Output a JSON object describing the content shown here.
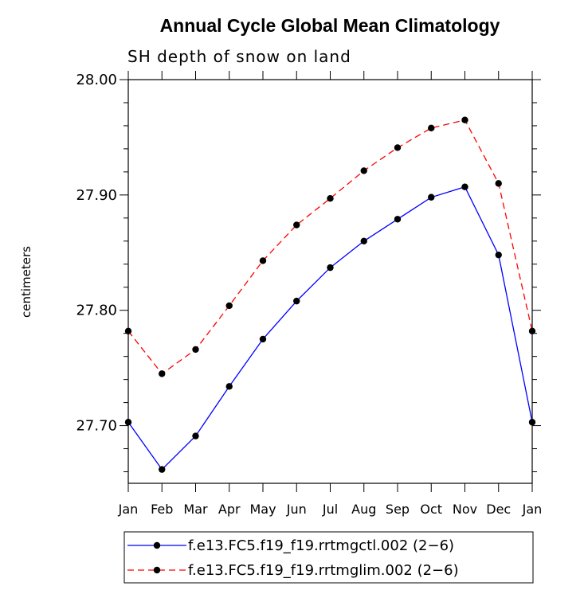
{
  "chart_data": {
    "type": "line",
    "title": "Annual Cycle Global Mean Climatology",
    "subtitle": "SH depth of snow on land",
    "xlabel": "",
    "ylabel": "centimeters",
    "categories": [
      "Jan",
      "Feb",
      "Mar",
      "Apr",
      "May",
      "Jun",
      "Jul",
      "Aug",
      "Sep",
      "Oct",
      "Nov",
      "Dec",
      "Jan"
    ],
    "ylim": [
      27.65,
      28.0
    ],
    "yticks": [
      27.7,
      27.8,
      27.9,
      28.0
    ],
    "ytick_labels": [
      "27.70",
      "27.80",
      "27.90",
      "28.00"
    ],
    "series": [
      {
        "name": "f.e13.FC5.f19_f19.rrtmgctl.002 (2−6)",
        "color": "#0000ff",
        "dash": "solid",
        "values": [
          27.703,
          27.662,
          27.691,
          27.734,
          27.775,
          27.808,
          27.837,
          27.86,
          27.879,
          27.898,
          27.907,
          27.848,
          27.703
        ]
      },
      {
        "name": "f.e13.FC5.f19_f19.rrtmglim.002 (2−6)",
        "color": "#ff0000",
        "dash": "dashed",
        "values": [
          27.782,
          27.745,
          27.766,
          27.804,
          27.843,
          27.874,
          27.897,
          27.921,
          27.941,
          27.958,
          27.965,
          27.91,
          27.782
        ]
      }
    ]
  }
}
